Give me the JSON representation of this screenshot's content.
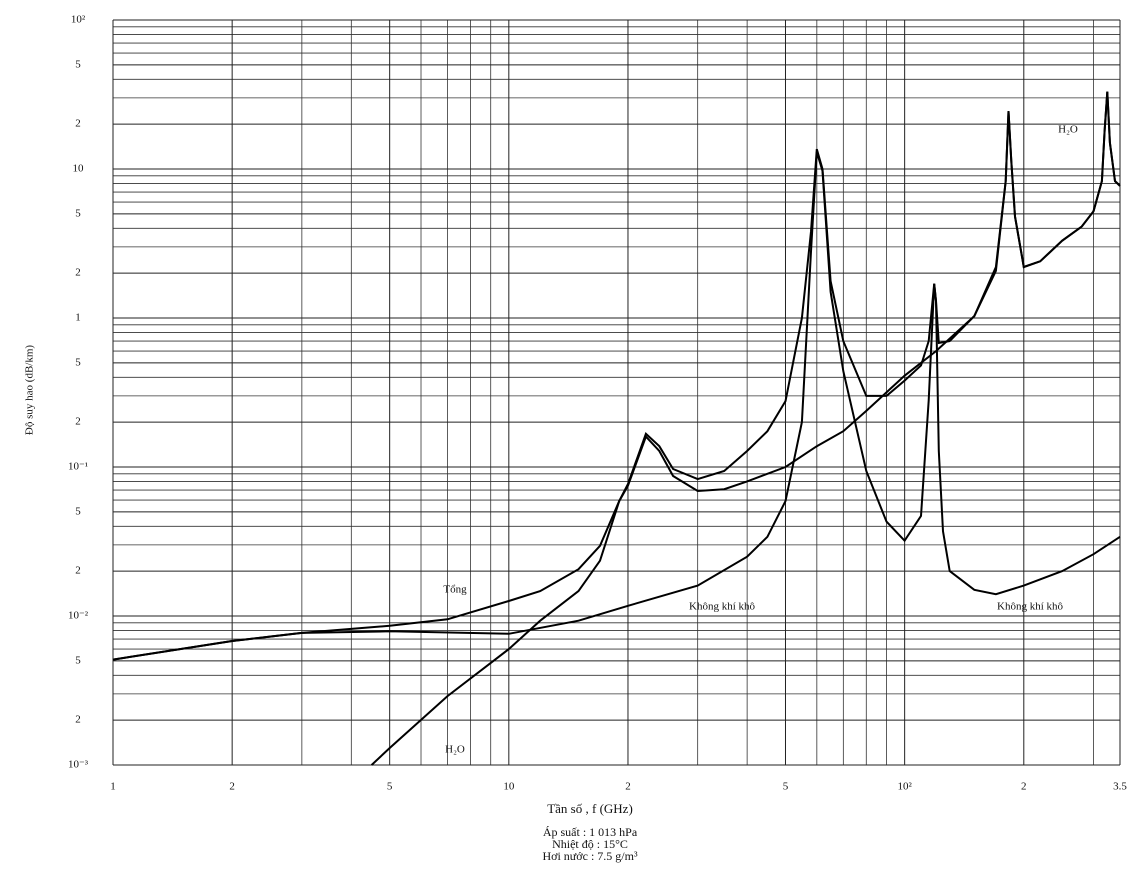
{
  "chart_data": {
    "type": "line",
    "xlabel": "Tần số , f (GHz)",
    "ylabel": "Độ suy hao (dB/km)",
    "notes": [
      "Áp suất : 1 013 hPa",
      "Nhiệt độ : 15°C",
      "Hơi nước : 7.5 g/m³"
    ],
    "xscale": "log",
    "yscale": "log",
    "grid": true,
    "xlim": [
      1,
      350
    ],
    "ylim": [
      0.001,
      100
    ],
    "xticks": [
      1,
      2,
      5,
      10,
      {
        "value": 20,
        "label": "2"
      },
      {
        "value": 50,
        "label": "5"
      },
      {
        "value": 100,
        "label": "10²"
      },
      {
        "value": 200,
        "label": "2"
      },
      {
        "value": 350,
        "label": "3.5"
      }
    ],
    "yticks": [
      {
        "value": 100,
        "label": "10²"
      },
      {
        "value": 50,
        "label": "5"
      },
      {
        "value": 20,
        "label": "2"
      },
      10,
      5,
      2,
      1,
      {
        "value": 0.5,
        "label": "5"
      },
      {
        "value": 0.2,
        "label": "2"
      },
      {
        "value": 0.1,
        "label": "10⁻¹"
      },
      {
        "value": 0.05,
        "label": "5"
      },
      {
        "value": 0.02,
        "label": "2"
      },
      {
        "value": 0.01,
        "label": "10⁻²"
      },
      {
        "value": 0.005,
        "label": "5"
      },
      {
        "value": 0.002,
        "label": "2"
      },
      {
        "value": 0.001,
        "label": "10⁻³"
      }
    ],
    "x_minor_grid": [
      3,
      4,
      6,
      7,
      8,
      9,
      30,
      40,
      60,
      70,
      80,
      90,
      300
    ],
    "y_minor_grid": [
      90,
      80,
      70,
      60,
      40,
      30,
      9,
      8,
      7,
      6,
      4,
      3,
      0.9,
      0.8,
      0.7,
      0.6,
      0.4,
      0.3,
      0.09,
      0.08,
      0.07,
      0.06,
      0.04,
      0.03,
      0.009,
      0.008,
      0.007,
      0.006,
      0.004,
      0.003
    ],
    "series": [
      {
        "name": "Tổng",
        "color": "#000000",
        "x": [
          1,
          2,
          3,
          5,
          7,
          10,
          12,
          15,
          17,
          19,
          20,
          22.2,
          24,
          26,
          30,
          35,
          40,
          45,
          50,
          55,
          58,
          60,
          62,
          65,
          70,
          80,
          90,
          100,
          110,
          115,
          118.75,
          120,
          122,
          130,
          150,
          170,
          180,
          183,
          186,
          190,
          200,
          220,
          250,
          280,
          300,
          315,
          320,
          325,
          330,
          340,
          350
        ],
        "values": [
          0.0051,
          0.0068,
          0.0077,
          0.0086,
          0.0095,
          0.0126,
          0.0147,
          0.0206,
          0.0296,
          0.059,
          0.077,
          0.167,
          0.138,
          0.097,
          0.083,
          0.094,
          0.128,
          0.174,
          0.277,
          1.0,
          3.8,
          13.6,
          10,
          1.77,
          0.7,
          0.3,
          0.3,
          0.38,
          0.48,
          0.7,
          1.7,
          1.3,
          0.68,
          0.7,
          1.03,
          2.2,
          8.3,
          24.5,
          11.3,
          4.8,
          2.2,
          2.4,
          3.3,
          4.1,
          5.2,
          8.3,
          18,
          33,
          15,
          8.3,
          7.7
        ]
      },
      {
        "name": "Không khí khô",
        "color": "#000000",
        "x": [
          1,
          2,
          3,
          5,
          10,
          15,
          20,
          30,
          40,
          45,
          50,
          55,
          58,
          60,
          62,
          65,
          70,
          80,
          90,
          100,
          110,
          115,
          118.75,
          120,
          122,
          125,
          130,
          150,
          170,
          200,
          250,
          300,
          350
        ],
        "values": [
          0.0051,
          0.0068,
          0.0077,
          0.0079,
          0.0076,
          0.0093,
          0.0117,
          0.016,
          0.025,
          0.034,
          0.059,
          0.2,
          2.8,
          13,
          9.7,
          1.5,
          0.44,
          0.094,
          0.043,
          0.032,
          0.047,
          0.28,
          1.7,
          1.3,
          0.128,
          0.037,
          0.02,
          0.015,
          0.014,
          0.016,
          0.02,
          0.026,
          0.034
        ]
      },
      {
        "name": "H₂O",
        "color": "#000000",
        "x": [
          4.5,
          5,
          7,
          10,
          12,
          15,
          17,
          19,
          20,
          22.2,
          24,
          26,
          30,
          35,
          40,
          50,
          60,
          70,
          80,
          100,
          120,
          150,
          170,
          180,
          183,
          186,
          190,
          200,
          220,
          250,
          280,
          300,
          315,
          320,
          325,
          330,
          340,
          350
        ],
        "values": [
          0.001,
          0.0013,
          0.0029,
          0.006,
          0.0093,
          0.0147,
          0.0235,
          0.059,
          0.075,
          0.16,
          0.128,
          0.087,
          0.069,
          0.071,
          0.08,
          0.1,
          0.138,
          0.174,
          0.238,
          0.41,
          0.6,
          1.03,
          2.07,
          8.3,
          24.5,
          11.3,
          4.8,
          2.2,
          2.4,
          3.3,
          4.1,
          5.2,
          8.3,
          18,
          33,
          15,
          8.3,
          7.7
        ]
      }
    ]
  }
}
